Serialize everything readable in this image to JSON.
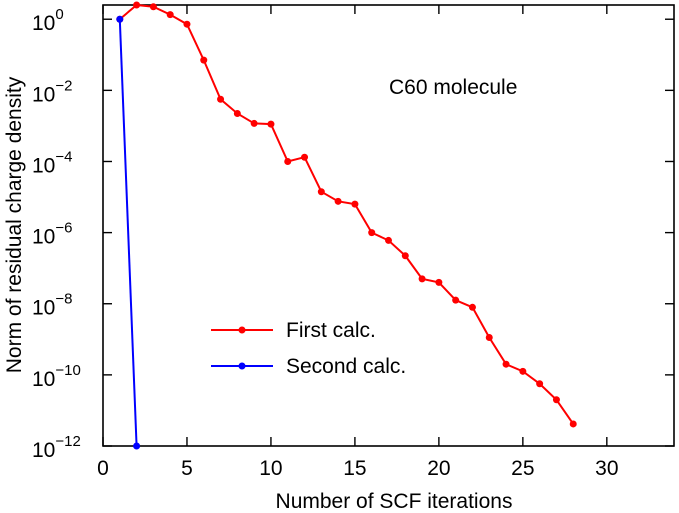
{
  "chart_data": {
    "type": "line",
    "yscale": "log",
    "xlabel": "Number of SCF iterations",
    "ylabel": "Norm of residual charge density",
    "xlim": [
      0,
      34
    ],
    "ylim_exp": [
      -12,
      0.4
    ],
    "x_ticks": [
      0,
      5,
      10,
      15,
      20,
      25,
      30
    ],
    "x_tick_labels": [
      "0",
      "5",
      "10",
      "15",
      "20",
      "25",
      "30"
    ],
    "y_ticks_exp": [
      0,
      -2,
      -4,
      -6,
      -8,
      -10,
      -12
    ],
    "y_tick_bases": [
      "10",
      "10",
      "10",
      "10",
      "10",
      "10",
      "10"
    ],
    "y_tick_exponents": [
      "0",
      "−2",
      "−4",
      "−6",
      "−8",
      "−10",
      "−12"
    ],
    "annotation": "C60 molecule",
    "legend_position": "lower-center",
    "series": [
      {
        "name": "First calc.",
        "color": "#ff0000",
        "x": [
          1,
          2,
          3,
          4,
          5,
          6,
          7,
          8,
          9,
          10,
          11,
          12,
          13,
          14,
          15,
          16,
          17,
          18,
          19,
          20,
          21,
          22,
          23,
          24,
          25,
          26,
          27,
          28
        ],
        "log10_y": [
          0.0,
          0.4,
          0.35,
          0.13,
          -0.14,
          -1.15,
          -2.25,
          -2.65,
          -2.93,
          -2.95,
          -4.0,
          -3.88,
          -4.85,
          -5.12,
          -5.2,
          -6.0,
          -6.22,
          -6.65,
          -7.3,
          -7.4,
          -7.9,
          -8.1,
          -8.95,
          -9.7,
          -9.9,
          -10.25,
          -10.7,
          -11.38
        ]
      },
      {
        "name": "Second calc.",
        "color": "#0000ff",
        "x": [
          1,
          2
        ],
        "log10_y": [
          0.0,
          -12.0
        ]
      }
    ]
  }
}
